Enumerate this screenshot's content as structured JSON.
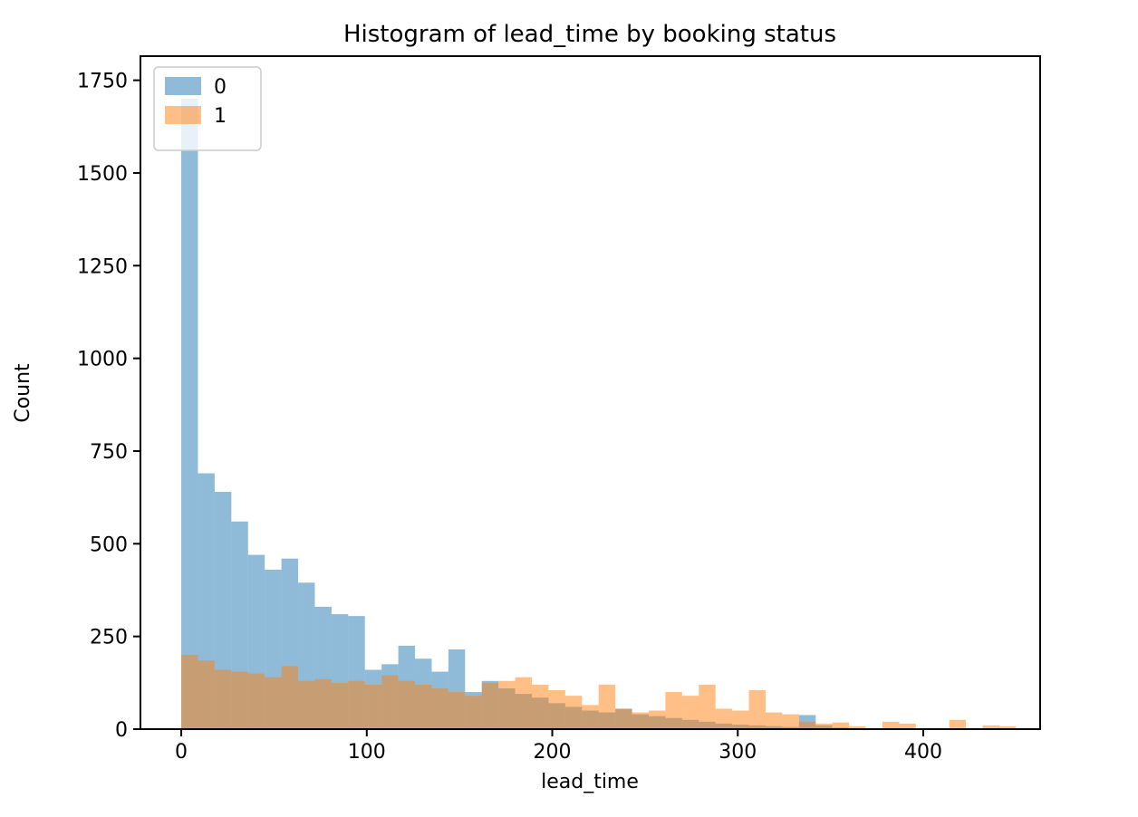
{
  "figure": {
    "background": "#ffffff"
  },
  "chart_data": {
    "type": "bar",
    "subtype": "overlaid-histogram",
    "title": "Histogram of lead_time by booking status",
    "xlabel": "lead_time",
    "ylabel": "Count",
    "bar_alpha": 0.5,
    "bin_start": 0,
    "bin_width": 9,
    "xlim": [
      -22,
      463
    ],
    "ylim": [
      0,
      1815
    ],
    "xticks": [
      0,
      100,
      200,
      300,
      400
    ],
    "yticks": [
      0,
      250,
      500,
      750,
      1000,
      1250,
      1500,
      1750
    ],
    "grid": false,
    "legend_position": "upper left",
    "frame_color": "#000000",
    "legend_edge_color": "#cccccc",
    "series": [
      {
        "name": "0",
        "color": "#1f77b4",
        "values": [
          1700,
          690,
          640,
          560,
          470,
          430,
          460,
          395,
          330,
          310,
          305,
          160,
          175,
          225,
          190,
          155,
          215,
          100,
          130,
          110,
          95,
          85,
          70,
          60,
          50,
          45,
          55,
          40,
          35,
          30,
          25,
          20,
          15,
          12,
          10,
          8,
          6,
          38,
          10,
          4,
          2,
          1,
          0,
          0,
          0,
          0,
          0,
          0,
          0,
          0
        ]
      },
      {
        "name": "1",
        "color": "#ff7f0e",
        "values": [
          200,
          185,
          160,
          155,
          150,
          140,
          170,
          130,
          135,
          125,
          130,
          120,
          145,
          130,
          120,
          110,
          100,
          90,
          125,
          130,
          140,
          120,
          105,
          90,
          65,
          120,
          55,
          45,
          50,
          100,
          90,
          120,
          55,
          50,
          105,
          45,
          40,
          20,
          15,
          18,
          8,
          2,
          20,
          15,
          0,
          2,
          25,
          3,
          10,
          8
        ]
      }
    ]
  }
}
